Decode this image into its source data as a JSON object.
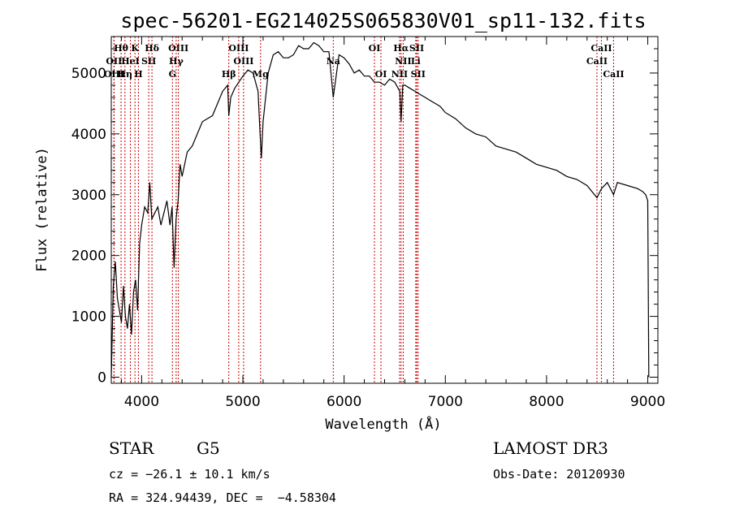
{
  "chart_data": {
    "type": "line",
    "title": "spec-56201-EG214025S065830V01_sp11-132.fits",
    "xlabel": "Wavelength (Å)",
    "ylabel": "Flux (relative)",
    "xlim": [
      3700,
      9100
    ],
    "ylim": [
      -100,
      5600
    ],
    "xticks": [
      4000,
      5000,
      6000,
      7000,
      8000,
      9000
    ],
    "yticks": [
      0,
      1000,
      2000,
      3000,
      4000,
      5000
    ],
    "series": [
      {
        "name": "flux",
        "x": [
          3700,
          3720,
          3740,
          3760,
          3780,
          3800,
          3820,
          3840,
          3860,
          3880,
          3900,
          3920,
          3940,
          3960,
          3980,
          4000,
          4030,
          4060,
          4080,
          4100,
          4130,
          4160,
          4190,
          4220,
          4250,
          4280,
          4300,
          4320,
          4340,
          4360,
          4380,
          4400,
          4450,
          4500,
          4550,
          4600,
          4650,
          4700,
          4750,
          4800,
          4850,
          4861,
          4880,
          4920,
          4960,
          5000,
          5050,
          5100,
          5150,
          5170,
          5183,
          5200,
          5250,
          5300,
          5350,
          5400,
          5450,
          5500,
          5550,
          5600,
          5650,
          5700,
          5750,
          5800,
          5850,
          5893,
          5950,
          6000,
          6050,
          6100,
          6150,
          6200,
          6250,
          6300,
          6350,
          6400,
          6450,
          6500,
          6550,
          6563,
          6580,
          6600,
          6650,
          6700,
          6750,
          6800,
          6850,
          6900,
          6950,
          7000,
          7100,
          7200,
          7300,
          7400,
          7500,
          7600,
          7700,
          7800,
          7900,
          8000,
          8100,
          8200,
          8300,
          8400,
          8498,
          8542,
          8600,
          8662,
          8700,
          8800,
          8900,
          8950,
          8980,
          9000,
          9010
        ],
        "values": [
          0,
          1500,
          1900,
          1300,
          1100,
          900,
          1500,
          1000,
          800,
          1200,
          700,
          1400,
          1600,
          1100,
          2200,
          2500,
          2800,
          2700,
          3200,
          2600,
          2700,
          2800,
          2500,
          2700,
          2900,
          2500,
          2800,
          1800,
          2600,
          2900,
          3500,
          3300,
          3700,
          3800,
          4000,
          4200,
          4250,
          4300,
          4500,
          4700,
          4800,
          4300,
          4600,
          4750,
          4850,
          4950,
          5050,
          5000,
          4700,
          4000,
          3600,
          4200,
          5000,
          5300,
          5350,
          5250,
          5250,
          5300,
          5450,
          5400,
          5400,
          5500,
          5450,
          5350,
          5350,
          4600,
          5300,
          5250,
          5150,
          5000,
          5050,
          4950,
          4950,
          4850,
          4850,
          4800,
          4900,
          4850,
          4700,
          4200,
          4800,
          4800,
          4750,
          4700,
          4650,
          4600,
          4550,
          4500,
          4450,
          4350,
          4250,
          4100,
          4000,
          3950,
          3800,
          3750,
          3700,
          3600,
          3500,
          3450,
          3400,
          3300,
          3250,
          3150,
          2950,
          3100,
          3200,
          3000,
          3200,
          3150,
          3100,
          3050,
          3000,
          2900,
          0
        ]
      }
    ],
    "spectral_lines": [
      {
        "label": "Hθ",
        "x": 3797,
        "row": 0
      },
      {
        "label": "K",
        "x": 3934,
        "row": 0
      },
      {
        "label": "Hδ",
        "x": 4102,
        "row": 0
      },
      {
        "label": "OIII",
        "x": 4363,
        "row": 0
      },
      {
        "label": "OIII",
        "x": 4959,
        "row": 0
      },
      {
        "label": "OI",
        "x": 6300,
        "row": 0
      },
      {
        "label": "Hα",
        "x": 6563,
        "row": 0
      },
      {
        "label": "SII",
        "x": 6717,
        "row": 0
      },
      {
        "label": "CaII",
        "x": 8542,
        "row": 0
      },
      {
        "label": "OII",
        "x": 3727,
        "row": 1
      },
      {
        "label": "HeI",
        "x": 3889,
        "row": 1
      },
      {
        "label": "SII",
        "x": 4070,
        "row": 1
      },
      {
        "label": "Hγ",
        "x": 4341,
        "row": 1
      },
      {
        "label": "OIII",
        "x": 5007,
        "row": 1
      },
      {
        "label": "Na",
        "x": 5893,
        "row": 1
      },
      {
        "label": "NII",
        "x": 6584,
        "row": 1
      },
      {
        "label": "Li",
        "x": 6708,
        "row": 1
      },
      {
        "label": "CaII",
        "x": 8498,
        "row": 1
      },
      {
        "label": "OIII",
        "x": 3727,
        "row": 2
      },
      {
        "label": "Hη",
        "x": 3835,
        "row": 2
      },
      {
        "label": "H",
        "x": 3968,
        "row": 2
      },
      {
        "label": "G",
        "x": 4304,
        "row": 2
      },
      {
        "label": "Hβ",
        "x": 4861,
        "row": 2
      },
      {
        "label": "Mg",
        "x": 5175,
        "row": 2
      },
      {
        "label": "OI",
        "x": 6364,
        "row": 2
      },
      {
        "label": "NII",
        "x": 6548,
        "row": 2
      },
      {
        "label": "SII",
        "x": 6731,
        "row": 2
      },
      {
        "label": "CaII",
        "x": 8662,
        "row": 2
      }
    ]
  },
  "info": {
    "object_class": "STAR",
    "subclass": "G5",
    "survey": "LAMOST DR3",
    "cz": "cz = −26.1 ± 10.1 km/s",
    "obs_date": "Obs-Date: 20120930",
    "coords": "RA = 324.94439, DEC =  −4.58304"
  },
  "colors": {
    "line_marker": "#cc0000",
    "spectrum": "#000000"
  }
}
